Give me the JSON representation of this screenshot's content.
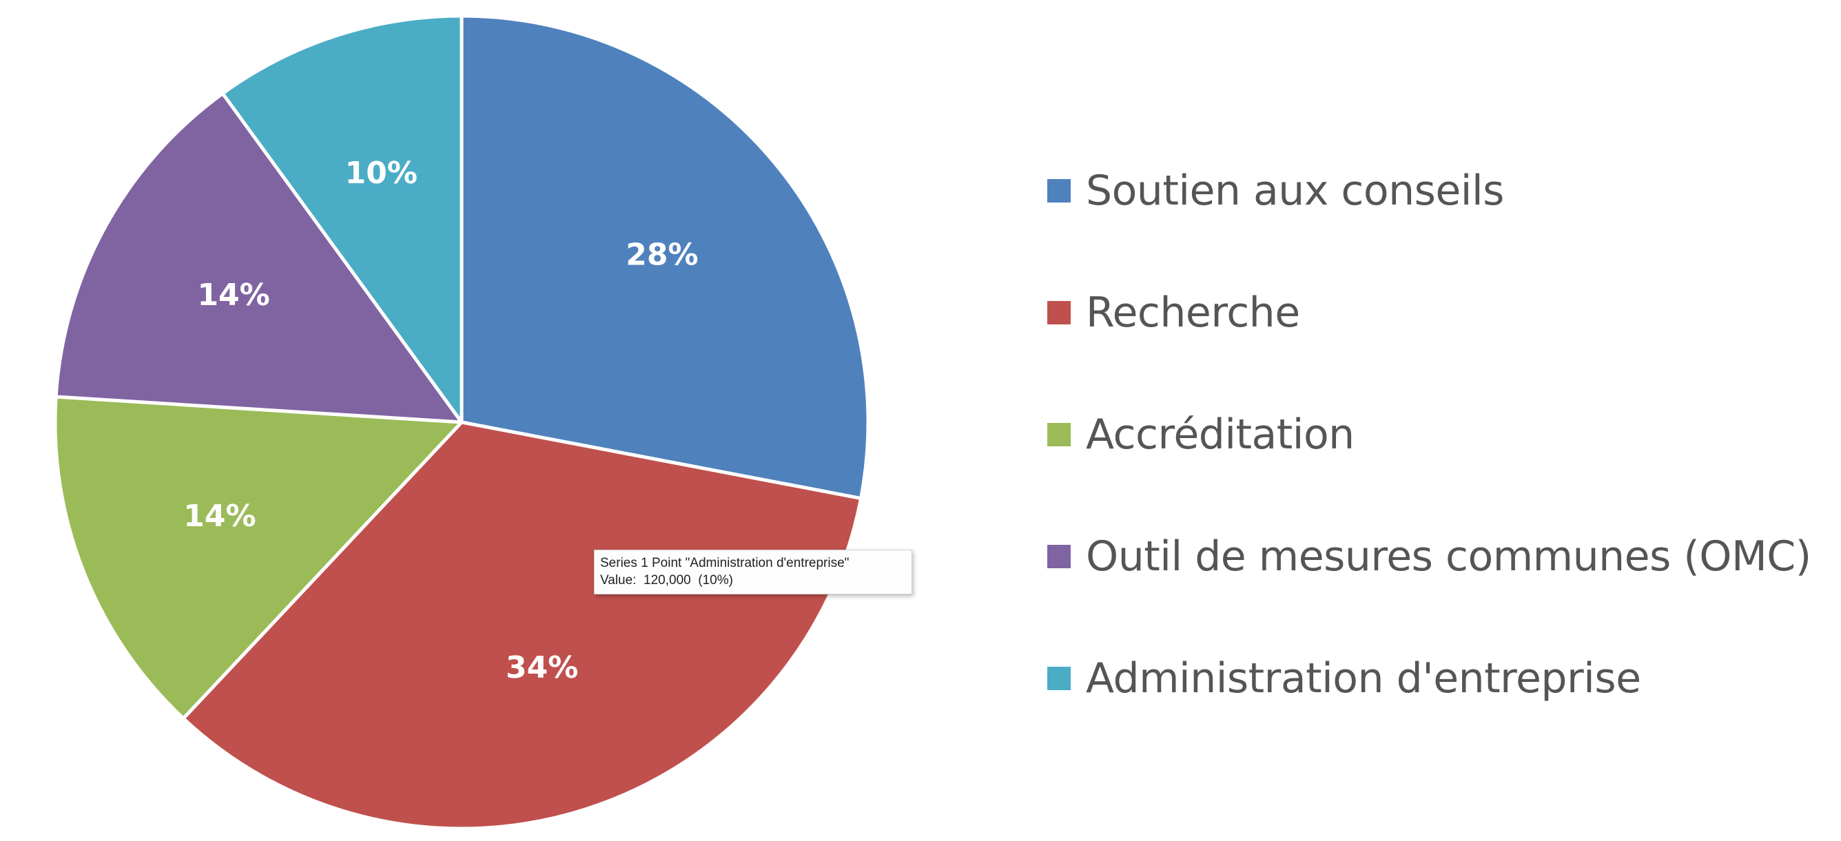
{
  "chart_data": {
    "type": "pie",
    "categories": [
      "Soutien aux conseils",
      "Recherche",
      "Accréditation",
      "Outil de mesures communes (OMC)",
      "Administration d'entreprise"
    ],
    "values": [
      28,
      34,
      14,
      14,
      10
    ],
    "data_labels": [
      "28%",
      "34%",
      "14%",
      "14%",
      "10%"
    ],
    "colors": [
      "#4f81bd",
      "#c0504d",
      "#9bbb59",
      "#8064a2",
      "#4bacc6"
    ],
    "legend_position": "right",
    "title": ""
  },
  "tooltip": {
    "line1": "Series 1 Point \"Administration d'entreprise\"",
    "line2": "Value:  120,000  (10%)"
  }
}
